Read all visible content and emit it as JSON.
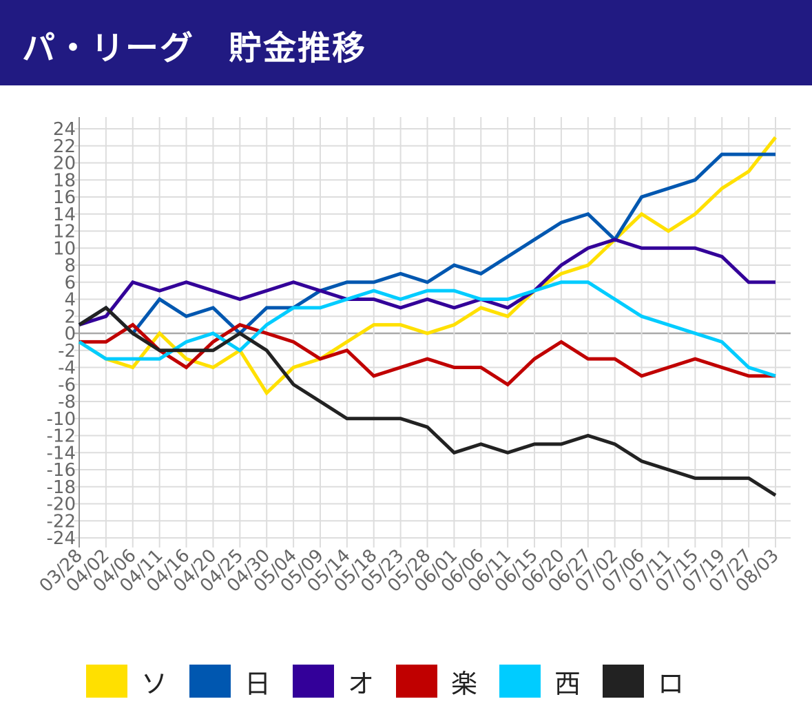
{
  "title": "パ・リーグ　貯金推移",
  "chart_data": {
    "type": "line",
    "title": "パ・リーグ　貯金推移",
    "xlabel": "",
    "ylabel": "",
    "ylim": [
      -24,
      24
    ],
    "yticks": [
      24,
      22,
      20,
      18,
      16,
      14,
      12,
      10,
      8,
      6,
      4,
      2,
      0,
      -2,
      -4,
      -6,
      -8,
      -10,
      -12,
      -14,
      -16,
      -18,
      -20,
      -22,
      -24
    ],
    "grid": true,
    "legend_position": "bottom",
    "categories": [
      "03/28",
      "04/02",
      "04/06",
      "04/11",
      "04/16",
      "04/20",
      "04/25",
      "04/30",
      "05/04",
      "05/09",
      "05/14",
      "05/18",
      "05/23",
      "05/28",
      "06/01",
      "06/06",
      "06/11",
      "06/15",
      "06/20",
      "06/27",
      "07/02",
      "07/06",
      "07/11",
      "07/15",
      "07/19",
      "07/27",
      "08/03"
    ],
    "series": [
      {
        "name": "ソ",
        "color": "#FFE000",
        "values": [
          -1,
          -3,
          -4,
          0,
          -3,
          -4,
          -2,
          -7,
          -4,
          -3,
          -1,
          1,
          1,
          0,
          1,
          3,
          2,
          5,
          7,
          8,
          11,
          14,
          12,
          14,
          17,
          19,
          23
        ]
      },
      {
        "name": "日",
        "color": "#0057B0",
        "values": [
          1,
          3,
          0,
          4,
          2,
          3,
          0,
          3,
          3,
          5,
          6,
          6,
          7,
          6,
          8,
          7,
          9,
          11,
          13,
          14,
          11,
          16,
          17,
          18,
          21,
          21,
          21
        ]
      },
      {
        "name": "オ",
        "color": "#330099",
        "values": [
          1,
          2,
          6,
          5,
          6,
          5,
          4,
          5,
          6,
          5,
          4,
          4,
          3,
          4,
          3,
          4,
          3,
          5,
          8,
          10,
          11,
          10,
          10,
          10,
          9,
          6,
          6
        ]
      },
      {
        "name": "楽",
        "color": "#C00000",
        "values": [
          -1,
          -1,
          1,
          -2,
          -4,
          -1,
          1,
          0,
          -1,
          -3,
          -2,
          -5,
          -4,
          -3,
          -4,
          -4,
          -6,
          -3,
          -1,
          -3,
          -3,
          -5,
          -4,
          -3,
          -4,
          -5,
          -5
        ]
      },
      {
        "name": "西",
        "color": "#00CCFF",
        "values": [
          -1,
          -3,
          -3,
          -3,
          -1,
          0,
          -2,
          1,
          3,
          3,
          4,
          5,
          4,
          5,
          5,
          4,
          4,
          5,
          6,
          6,
          4,
          2,
          1,
          0,
          -1,
          -4,
          -5
        ]
      },
      {
        "name": "ロ",
        "color": "#222222",
        "values": [
          1,
          3,
          0,
          -2,
          -2,
          -2,
          0,
          -2,
          -6,
          -8,
          -10,
          -10,
          -10,
          -11,
          -14,
          -13,
          -14,
          -13,
          -13,
          -12,
          -13,
          -15,
          -16,
          -17,
          -17,
          -17,
          -19
        ]
      }
    ]
  }
}
